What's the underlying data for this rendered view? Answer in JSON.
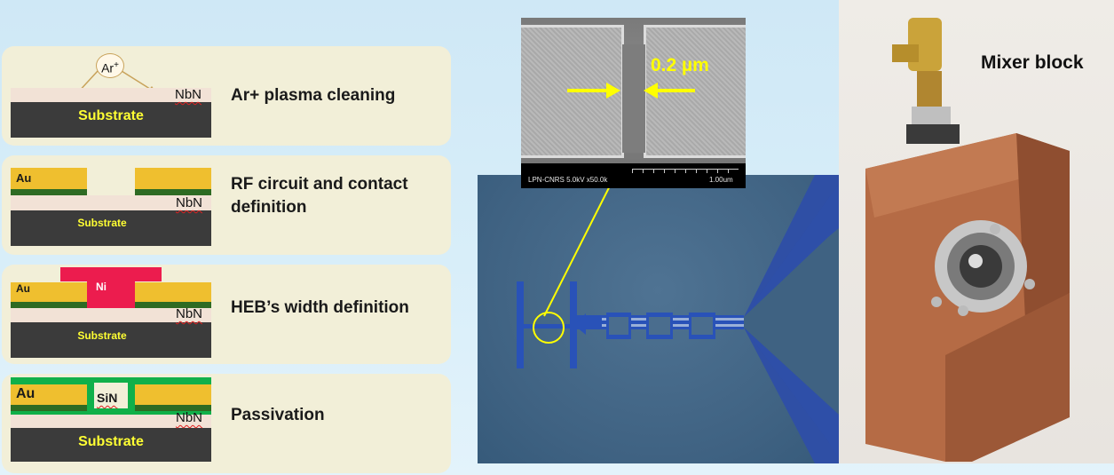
{
  "steps": [
    {
      "label": "Ar+ plasma cleaning",
      "substrate": "Substrate",
      "nbn": "NbN",
      "ion": "Ar",
      "ion_charge": "+"
    },
    {
      "label": "RF circuit and contact definition",
      "label_line1": "RF circuit and contact",
      "label_line2": "definition",
      "substrate": "Substrate",
      "nbn": "NbN",
      "au": "Au"
    },
    {
      "label": "HEB’s width definition",
      "substrate": "Substrate",
      "nbn": "NbN",
      "au": "Au",
      "ni": "Ni"
    },
    {
      "label": "Passivation",
      "substrate": "Substrate",
      "nbn": "NbN",
      "au": "Au",
      "sin": "SiN"
    }
  ],
  "sem": {
    "gap": "0.2 µm",
    "footer_left": "LPN-CNRS 5.0kV x50.0k",
    "footer_right": "1.00um"
  },
  "photo": {
    "title": "Mixer block"
  },
  "colors": {
    "substrate": "#3b3b3b",
    "nbn": "#f2e2d6",
    "gold": "#efbf2f",
    "nickel": "#ec1c4e",
    "passivation": "#10b04a",
    "arrow": "#ffff00"
  }
}
